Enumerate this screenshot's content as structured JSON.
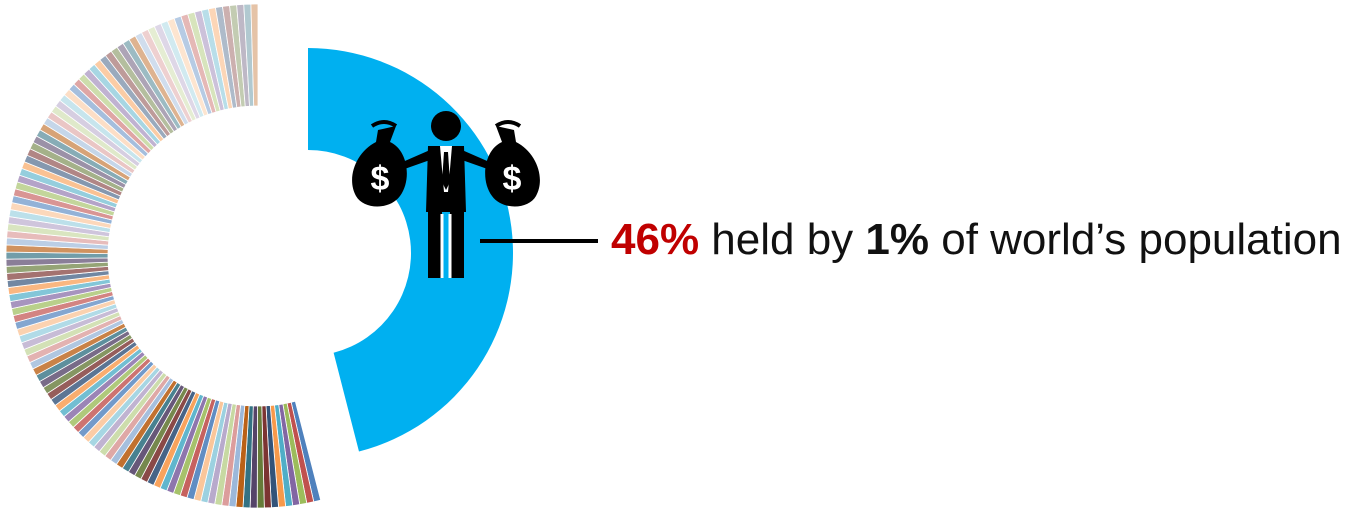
{
  "chart_data": {
    "type": "pie",
    "subtype": "donut",
    "highlight_slice": {
      "share_percent": 46,
      "color": "#00B0F0",
      "icon": "wealthy-man-with-money-bags-icon"
    },
    "remaining_share_percent": 54,
    "remaining_slices_style": "many thin multicolor slices",
    "annotation": {
      "percent_text": "46%",
      "percent_color": "#C00000",
      "middle_text": " held by ",
      "population_text": "1%",
      "end_text": " of world’s population"
    }
  },
  "palette": [
    "#4F81BD",
    "#C0504D",
    "#9BBB59",
    "#8064A2",
    "#4BACC6",
    "#F79646",
    "#2C4D75",
    "#772C2A",
    "#5F7530",
    "#4D3B62",
    "#276A7C",
    "#B65708",
    "#95B3D7",
    "#D99694",
    "#C3D69B",
    "#B2A2C7",
    "#93CDDD",
    "#FAC090"
  ]
}
